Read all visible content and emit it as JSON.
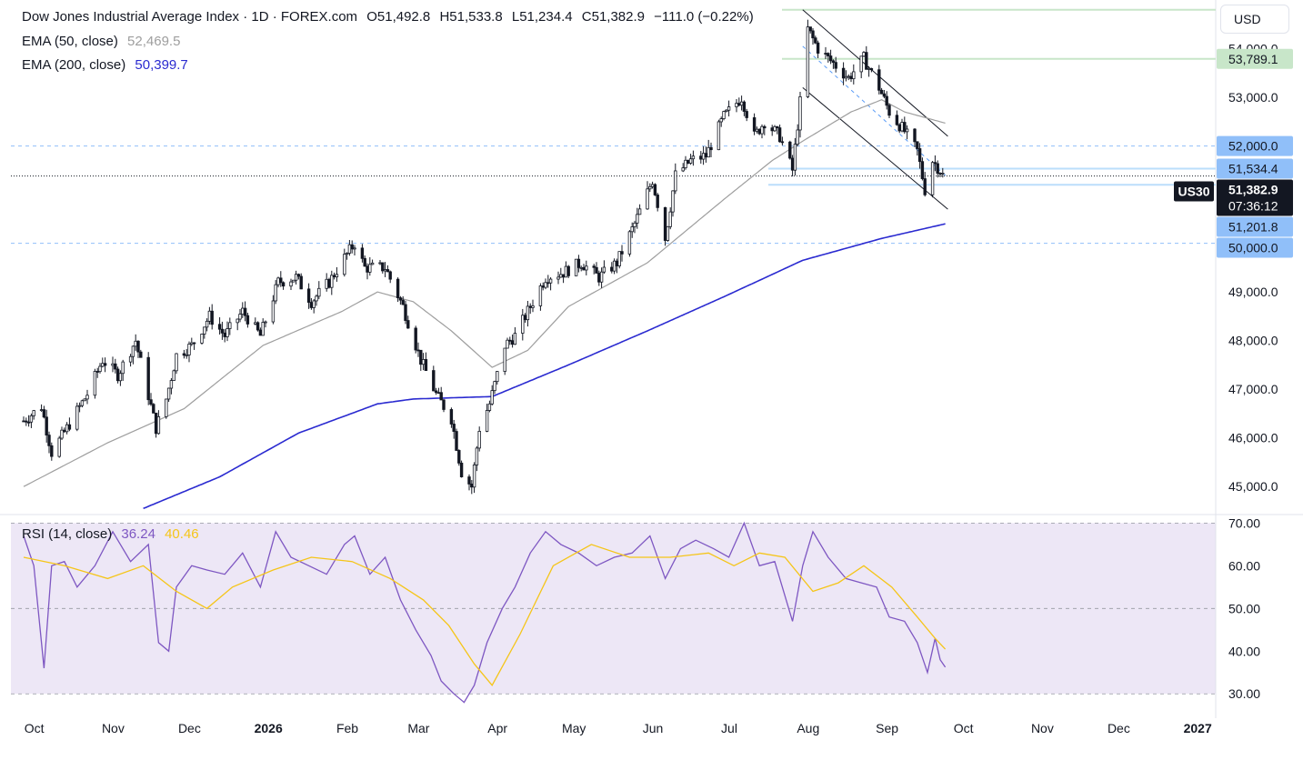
{
  "header": {
    "symbol_title": "Dow Jones Industrial Average Index · 1D · FOREX.com",
    "open": "O51,492.8",
    "high": "H51,533.8",
    "low": "L51,234.4",
    "close": "C51,382.9",
    "change": "−111.0 (−0.22%)",
    "currency": "USD"
  },
  "indicators": {
    "ema50": {
      "label": "EMA (50, close)",
      "value": "52,469.5",
      "color": "#9e9e9e"
    },
    "ema200": {
      "label": "EMA (200, close)",
      "value": "50,399.7",
      "color": "#2a2ad0"
    },
    "rsi": {
      "label": "RSI (14, close)",
      "value": "36.24",
      "ma_value": "40.46",
      "color": "#7e57c2",
      "ma_color": "#f5c518"
    }
  },
  "colors": {
    "candle": "#131722",
    "grid_dash": "#9598a1",
    "level_blue": "#90bff9",
    "level_green": "#c8e6c9",
    "rsi_band": "#ede7f6"
  },
  "chart_data": [
    {
      "type": "candlestick",
      "title": "Dow Jones Industrial Average Index · 1D · FOREX.com",
      "x_ticks": [
        "Oct",
        "Nov",
        "Dec",
        "2026",
        "Feb",
        "Mar",
        "Apr",
        "May",
        "Jun",
        "Jul",
        "Aug",
        "Sep",
        "Oct",
        "Nov",
        "Dec",
        "2027"
      ],
      "y_ticks": [
        45000,
        46000,
        47000,
        48000,
        49000,
        50000,
        51000,
        52000,
        53000,
        54000
      ],
      "y_tick_labels": [
        "45,000.0",
        "46,000.0",
        "47,000.0",
        "48,000.0",
        "49,000.0",
        "50,000.0",
        "51,000.0",
        "52,000.0",
        "53,000.0",
        "54,000.0"
      ],
      "ylim": [
        44500,
        55000
      ],
      "price_labels": [
        {
          "value": "53,789.1",
          "style": "green"
        },
        {
          "value": "52,000.0",
          "style": "blue"
        },
        {
          "value": "51,534.4",
          "style": "blue"
        },
        {
          "value": "51,382.9",
          "style": "current",
          "tag": "US30",
          "countdown": "07:36:12"
        },
        {
          "value": "51,201.8",
          "style": "blue"
        },
        {
          "value": "50,000.0",
          "style": "blue"
        }
      ],
      "levels": [
        {
          "y": 54800,
          "style": "green"
        },
        {
          "y": 53789.1,
          "style": "green"
        },
        {
          "y": 52000,
          "style": "dashed"
        },
        {
          "y": 51534.4,
          "style": "blue"
        },
        {
          "y": 51382.9,
          "style": "dotted"
        },
        {
          "y": 51201.8,
          "style": "blue"
        },
        {
          "y": 50000,
          "style": "dashed"
        }
      ],
      "channel": {
        "upper": [
          [
            "2026-08-01",
            54800
          ],
          [
            "2026-09-27",
            52200
          ]
        ],
        "middle": [
          [
            "2026-08-01",
            54050
          ],
          [
            "2026-09-27",
            51350
          ]
        ],
        "lower": [
          [
            "2026-08-01",
            53200
          ],
          [
            "2026-09-27",
            50700
          ]
        ]
      },
      "close_keypoints": [
        [
          "2025-09-29",
          46350
        ],
        [
          "2025-10-06",
          46650
        ],
        [
          "2025-10-10",
          45700
        ],
        [
          "2025-10-16",
          46200
        ],
        [
          "2025-10-24",
          46900
        ],
        [
          "2025-10-30",
          47600
        ],
        [
          "2025-11-05",
          47300
        ],
        [
          "2025-11-12",
          48000
        ],
        [
          "2025-11-20",
          46200
        ],
        [
          "2025-11-24",
          46800
        ],
        [
          "2025-11-28",
          47700
        ],
        [
          "2025-12-04",
          47900
        ],
        [
          "2025-12-11",
          48500
        ],
        [
          "2025-12-17",
          48100
        ],
        [
          "2025-12-24",
          48600
        ],
        [
          "2025-12-31",
          48100
        ],
        [
          "2026-01-07",
          49200
        ],
        [
          "2026-01-14",
          49300
        ],
        [
          "2026-01-20",
          48800
        ],
        [
          "2026-01-27",
          49200
        ],
        [
          "2026-02-02",
          49700
        ],
        [
          "2026-02-06",
          50000
        ],
        [
          "2026-02-10",
          49500
        ],
        [
          "2026-02-18",
          49500
        ],
        [
          "2026-02-25",
          48700
        ],
        [
          "2026-03-04",
          47600
        ],
        [
          "2026-03-10",
          46900
        ],
        [
          "2026-03-16",
          46400
        ],
        [
          "2026-03-20",
          45300
        ],
        [
          "2026-03-24",
          45000
        ],
        [
          "2026-03-27",
          46200
        ],
        [
          "2026-03-31",
          46700
        ],
        [
          "2026-04-06",
          47900
        ],
        [
          "2026-04-10",
          48100
        ],
        [
          "2026-04-16",
          48700
        ],
        [
          "2026-04-22",
          49300
        ],
        [
          "2026-04-29",
          49400
        ],
        [
          "2026-05-06",
          49600
        ],
        [
          "2026-05-13",
          49300
        ],
        [
          "2026-05-20",
          49600
        ],
        [
          "2026-05-27",
          50400
        ],
        [
          "2026-06-03",
          51300
        ],
        [
          "2026-06-08",
          50100
        ],
        [
          "2026-06-12",
          51400
        ],
        [
          "2026-06-18",
          51700
        ],
        [
          "2026-06-24",
          51800
        ],
        [
          "2026-07-01",
          52600
        ],
        [
          "2026-07-08",
          53000
        ],
        [
          "2026-07-13",
          52200
        ],
        [
          "2026-07-17",
          52500
        ],
        [
          "2026-07-23",
          52200
        ],
        [
          "2026-07-28",
          51500
        ],
        [
          "2026-07-31",
          52900
        ],
        [
          "2026-08-03",
          54400
        ],
        [
          "2026-08-07",
          54000
        ],
        [
          "2026-08-13",
          53700
        ],
        [
          "2026-08-19",
          53400
        ],
        [
          "2026-08-25",
          53800
        ],
        [
          "2026-08-31",
          53200
        ],
        [
          "2026-09-04",
          52700
        ],
        [
          "2026-09-10",
          52300
        ],
        [
          "2026-09-15",
          51900
        ],
        [
          "2026-09-18",
          51100
        ],
        [
          "2026-09-21",
          51700
        ],
        [
          "2026-09-24",
          51500
        ],
        [
          "2026-09-26",
          51382.9
        ]
      ],
      "ema50_keypoints": [
        [
          "2025-09-29",
          45000
        ],
        [
          "2025-11-01",
          45900
        ],
        [
          "2025-12-01",
          46600
        ],
        [
          "2026-01-01",
          47900
        ],
        [
          "2026-02-01",
          48600
        ],
        [
          "2026-02-15",
          49000
        ],
        [
          "2026-03-01",
          48800
        ],
        [
          "2026-03-16",
          48200
        ],
        [
          "2026-04-01",
          47450
        ],
        [
          "2026-04-15",
          47800
        ],
        [
          "2026-05-01",
          48700
        ],
        [
          "2026-06-01",
          49600
        ],
        [
          "2026-07-01",
          50900
        ],
        [
          "2026-07-20",
          51700
        ],
        [
          "2026-08-01",
          52100
        ],
        [
          "2026-08-20",
          52700
        ],
        [
          "2026-09-01",
          52950
        ],
        [
          "2026-09-10",
          52700
        ],
        [
          "2026-09-26",
          52469.5
        ]
      ],
      "ema200_keypoints": [
        [
          "2025-11-15",
          44550
        ],
        [
          "2025-12-15",
          45200
        ],
        [
          "2026-01-15",
          46100
        ],
        [
          "2026-02-15",
          46700
        ],
        [
          "2026-03-01",
          46800
        ],
        [
          "2026-04-01",
          46850
        ],
        [
          "2026-05-01",
          47500
        ],
        [
          "2026-06-01",
          48200
        ],
        [
          "2026-07-01",
          48900
        ],
        [
          "2026-08-01",
          49650
        ],
        [
          "2026-09-01",
          50100
        ],
        [
          "2026-09-26",
          50399.7
        ]
      ]
    },
    {
      "type": "line",
      "title": "RSI (14, close)",
      "y_ticks": [
        30,
        40,
        50,
        60,
        70
      ],
      "y_tick_labels": [
        "30.00",
        "40.00",
        "50.00",
        "60.00",
        "70.00"
      ],
      "ylim": [
        26,
        72
      ],
      "band": [
        30,
        70
      ],
      "series": [
        {
          "name": "RSI",
          "points": [
            [
              "2025-09-29",
              67
            ],
            [
              "2025-10-03",
              60
            ],
            [
              "2025-10-07",
              36
            ],
            [
              "2025-10-10",
              60
            ],
            [
              "2025-10-15",
              61
            ],
            [
              "2025-10-20",
              55
            ],
            [
              "2025-10-27",
              60
            ],
            [
              "2025-11-03",
              68
            ],
            [
              "2025-11-10",
              61
            ],
            [
              "2025-11-17",
              65
            ],
            [
              "2025-11-21",
              42
            ],
            [
              "2025-11-25",
              40
            ],
            [
              "2025-11-28",
              55
            ],
            [
              "2025-12-04",
              60
            ],
            [
              "2025-12-10",
              59
            ],
            [
              "2025-12-17",
              58
            ],
            [
              "2025-12-24",
              63
            ],
            [
              "2025-12-31",
              55
            ],
            [
              "2026-01-06",
              68
            ],
            [
              "2026-01-12",
              62
            ],
            [
              "2026-01-19",
              60
            ],
            [
              "2026-01-26",
              58
            ],
            [
              "2026-02-02",
              65
            ],
            [
              "2026-02-06",
              67
            ],
            [
              "2026-02-12",
              58
            ],
            [
              "2026-02-18",
              62
            ],
            [
              "2026-02-24",
              52
            ],
            [
              "2026-03-02",
              45
            ],
            [
              "2026-03-08",
              39
            ],
            [
              "2026-03-12",
              33
            ],
            [
              "2026-03-17",
              30
            ],
            [
              "2026-03-21",
              28
            ],
            [
              "2026-03-25",
              32
            ],
            [
              "2026-03-30",
              42
            ],
            [
              "2026-04-05",
              50
            ],
            [
              "2026-04-10",
              55
            ],
            [
              "2026-04-16",
              63
            ],
            [
              "2026-04-22",
              68
            ],
            [
              "2026-04-28",
              65
            ],
            [
              "2026-05-05",
              63
            ],
            [
              "2026-05-12",
              60
            ],
            [
              "2026-05-19",
              62
            ],
            [
              "2026-05-26",
              63
            ],
            [
              "2026-06-02",
              67
            ],
            [
              "2026-06-08",
              57
            ],
            [
              "2026-06-14",
              64
            ],
            [
              "2026-06-20",
              66
            ],
            [
              "2026-06-27",
              64
            ],
            [
              "2026-07-03",
              62
            ],
            [
              "2026-07-09",
              70
            ],
            [
              "2026-07-15",
              60
            ],
            [
              "2026-07-21",
              61
            ],
            [
              "2026-07-28",
              47
            ],
            [
              "2026-08-01",
              60
            ],
            [
              "2026-08-05",
              68
            ],
            [
              "2026-08-11",
              62
            ],
            [
              "2026-08-18",
              57
            ],
            [
              "2026-08-24",
              56
            ],
            [
              "2026-08-30",
              55
            ],
            [
              "2026-09-04",
              48
            ],
            [
              "2026-09-10",
              47
            ],
            [
              "2026-09-15",
              42
            ],
            [
              "2026-09-19",
              35
            ],
            [
              "2026-09-22",
              43
            ],
            [
              "2026-09-24",
              38
            ],
            [
              "2026-09-26",
              36.24
            ]
          ]
        },
        {
          "name": "RSI MA",
          "points": [
            [
              "2025-09-29",
              62
            ],
            [
              "2025-10-15",
              60
            ],
            [
              "2025-11-01",
              57
            ],
            [
              "2025-11-15",
              60
            ],
            [
              "2025-11-28",
              54
            ],
            [
              "2025-12-10",
              50
            ],
            [
              "2025-12-20",
              55
            ],
            [
              "2026-01-05",
              59
            ],
            [
              "2026-01-20",
              62
            ],
            [
              "2026-02-05",
              61
            ],
            [
              "2026-02-20",
              57
            ],
            [
              "2026-03-05",
              52
            ],
            [
              "2026-03-15",
              46
            ],
            [
              "2026-03-25",
              37
            ],
            [
              "2026-04-01",
              32
            ],
            [
              "2026-04-12",
              44
            ],
            [
              "2026-04-25",
              60
            ],
            [
              "2026-05-10",
              65
            ],
            [
              "2026-05-25",
              62
            ],
            [
              "2026-06-10",
              62
            ],
            [
              "2026-06-25",
              63
            ],
            [
              "2026-07-05",
              60
            ],
            [
              "2026-07-15",
              63
            ],
            [
              "2026-07-25",
              62
            ],
            [
              "2026-08-05",
              54
            ],
            [
              "2026-08-15",
              56
            ],
            [
              "2026-08-25",
              60
            ],
            [
              "2026-09-05",
              55
            ],
            [
              "2026-09-15",
              48
            ],
            [
              "2026-09-22",
              43
            ],
            [
              "2026-09-26",
              40.46
            ]
          ]
        }
      ]
    }
  ]
}
